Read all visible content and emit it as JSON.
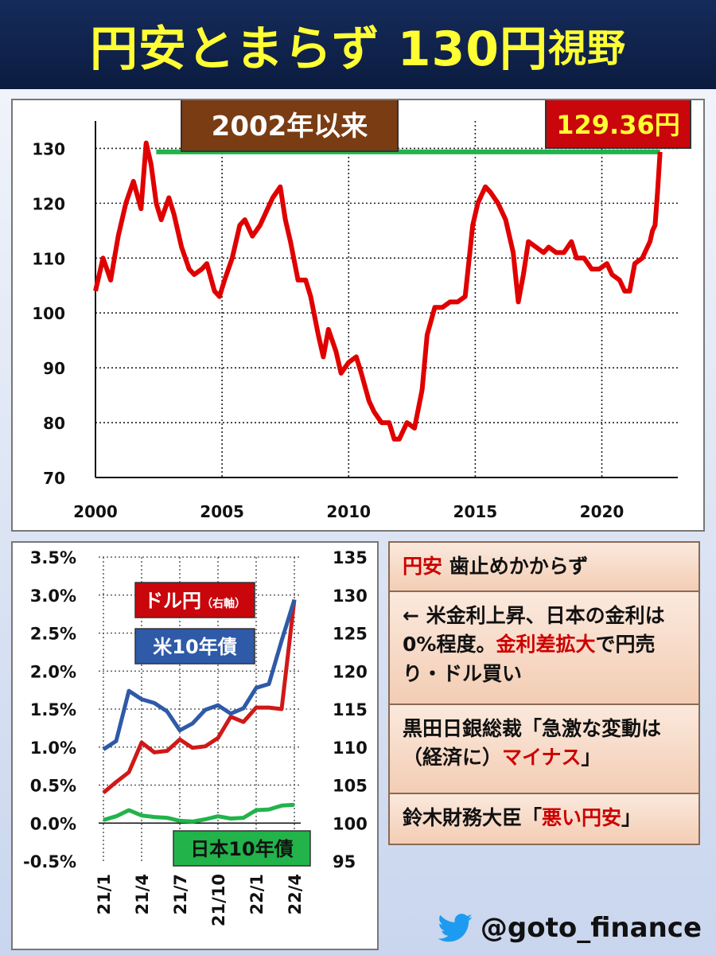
{
  "title": {
    "part1": "円安とまらず 130円",
    "part2": "視野"
  },
  "chart_data": [
    {
      "type": "line",
      "x_label_ticks": [
        "2000",
        "2005",
        "2010",
        "2015",
        "2020"
      ],
      "ylim": [
        70,
        135
      ],
      "y_ticks": [
        70,
        80,
        90,
        100,
        110,
        120,
        130
      ],
      "badge_since": "2002年以来",
      "badge_value": "129.36円",
      "reference_line": {
        "from": 2002.4,
        "to": 2022.3,
        "y": 129.36,
        "color": "#22b34a"
      },
      "series": [
        {
          "color": "#e00000",
          "x": [
            2000.0,
            2000.3,
            2000.6,
            2000.9,
            2001.2,
            2001.5,
            2001.8,
            2002.0,
            2002.2,
            2002.4,
            2002.6,
            2002.9,
            2003.1,
            2003.4,
            2003.7,
            2003.9,
            2004.2,
            2004.4,
            2004.7,
            2004.9,
            2005.1,
            2005.4,
            2005.7,
            2005.9,
            2006.2,
            2006.5,
            2006.8,
            2007.0,
            2007.3,
            2007.5,
            2007.7,
            2008.0,
            2008.3,
            2008.5,
            2008.8,
            2009.0,
            2009.2,
            2009.5,
            2009.7,
            2010.0,
            2010.3,
            2010.5,
            2010.8,
            2011.0,
            2011.3,
            2011.6,
            2011.8,
            2012.0,
            2012.3,
            2012.6,
            2012.9,
            2013.1,
            2013.4,
            2013.7,
            2014.0,
            2014.3,
            2014.6,
            2014.9,
            2015.1,
            2015.4,
            2015.6,
            2015.9,
            2016.2,
            2016.5,
            2016.7,
            2016.9,
            2017.1,
            2017.4,
            2017.7,
            2017.9,
            2018.2,
            2018.5,
            2018.8,
            2019.0,
            2019.3,
            2019.6,
            2019.9,
            2020.2,
            2020.4,
            2020.7,
            2020.9,
            2021.1,
            2021.3,
            2021.6,
            2021.9,
            2022.0,
            2022.1,
            2022.2,
            2022.3
          ],
          "y": [
            104,
            110,
            106,
            114,
            120,
            124,
            119,
            131,
            127,
            120,
            117,
            121,
            118,
            112,
            108,
            107,
            108,
            109,
            104,
            103,
            106,
            110,
            116,
            117,
            114,
            116,
            119,
            121,
            123,
            117,
            113,
            106,
            106,
            103,
            96,
            92,
            97,
            93,
            89,
            91,
            92,
            89,
            84,
            82,
            80,
            80,
            77,
            77,
            80,
            79,
            86,
            96,
            101,
            101,
            102,
            102,
            103,
            116,
            120,
            123,
            122,
            120,
            117,
            111,
            102,
            107,
            113,
            112,
            111,
            112,
            111,
            111,
            113,
            110,
            110,
            108,
            108,
            109,
            107,
            106,
            104,
            104,
            109,
            110,
            113,
            115,
            116,
            122,
            129.36
          ]
        }
      ]
    },
    {
      "type": "line",
      "categories": [
        "21/1",
        "21/2",
        "21/3",
        "21/4",
        "21/5",
        "21/6",
        "21/7",
        "21/8",
        "21/9",
        "21/10",
        "21/11",
        "21/12",
        "22/1",
        "22/2",
        "22/3",
        "22/4"
      ],
      "x_tick_labels": [
        "21/1",
        "21/4",
        "21/7",
        "21/10",
        "22/1",
        "22/4"
      ],
      "y_left": {
        "range": [
          -0.5,
          3.5
        ],
        "ticks": [
          "-0.5%",
          "0.0%",
          "0.5%",
          "1.0%",
          "1.5%",
          "2.0%",
          "2.5%",
          "3.0%",
          "3.5%"
        ]
      },
      "y_right": {
        "range": [
          95,
          135
        ],
        "ticks": [
          "95",
          "100",
          "105",
          "110",
          "115",
          "120",
          "125",
          "130",
          "135"
        ]
      },
      "series": [
        {
          "name": "ドル円",
          "name_note": "（右軸）",
          "axis": "right",
          "color": "#d01818",
          "values": [
            104.0,
            105.4,
            106.7,
            110.6,
            109.3,
            109.5,
            111.0,
            109.9,
            110.1,
            111.2,
            114.0,
            113.3,
            115.2,
            115.2,
            115.0,
            129.4
          ]
        },
        {
          "name": "米10年債",
          "axis": "left",
          "color": "#2e5aa8",
          "values": [
            0.97,
            1.08,
            1.74,
            1.63,
            1.58,
            1.47,
            1.22,
            1.31,
            1.49,
            1.55,
            1.44,
            1.51,
            1.78,
            1.83,
            2.4,
            2.94
          ]
        },
        {
          "name": "日本10年債",
          "axis": "left",
          "color": "#22b34a",
          "values": [
            0.04,
            0.09,
            0.17,
            0.1,
            0.08,
            0.07,
            0.03,
            0.02,
            0.05,
            0.09,
            0.06,
            0.07,
            0.17,
            0.18,
            0.23,
            0.24
          ]
        }
      ]
    }
  ],
  "notes": [
    [
      {
        "t": "円安",
        "r": true
      },
      {
        "t": " 歯止めかからず",
        "r": false
      }
    ],
    [
      {
        "t": "← 米金利上昇、日本の金利は0%程度。",
        "r": false
      },
      {
        "t": "金利差拡大",
        "r": true
      },
      {
        "t": "で円売り・ドル買い",
        "r": false
      }
    ],
    [
      {
        "t": "黒田日銀総裁「急激な変動は（経済に）",
        "r": false
      },
      {
        "t": "マイナス",
        "r": true
      },
      {
        "t": "」",
        "r": false
      }
    ],
    [
      {
        "t": "鈴木財務大臣「",
        "r": false
      },
      {
        "t": "悪い円安",
        "r": true
      },
      {
        "t": "」",
        "r": false
      }
    ]
  ],
  "handle": "@goto_finance",
  "icons": {
    "handle_icon": "twitter-bird-icon"
  }
}
